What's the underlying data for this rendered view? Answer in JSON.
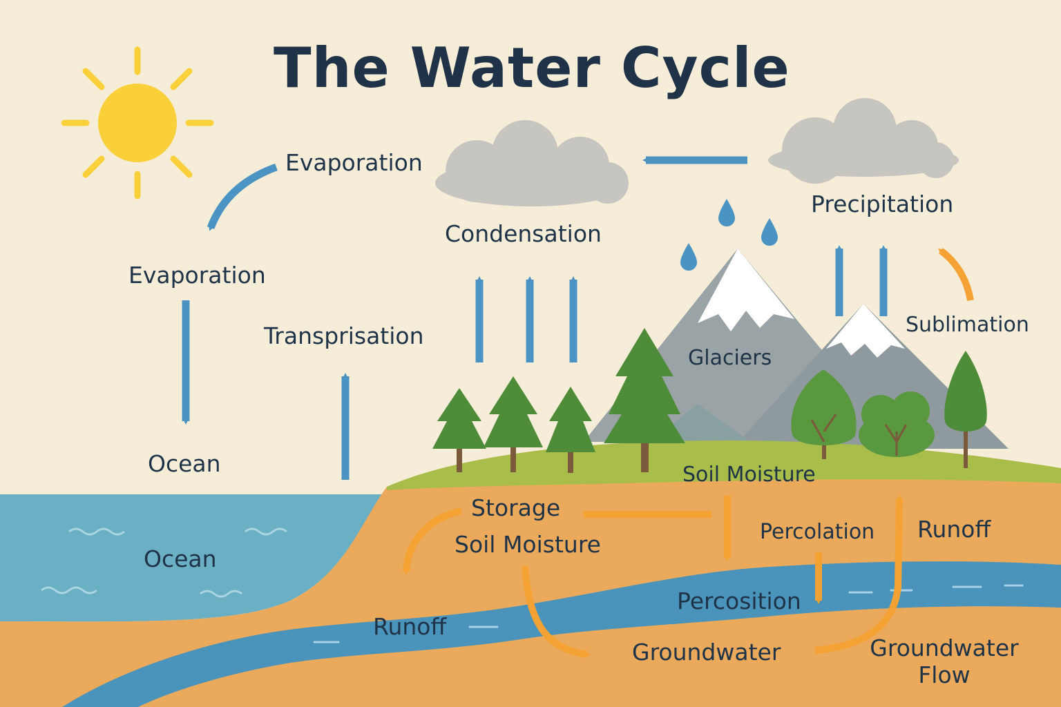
{
  "title": "The Water Cycle",
  "labels": {
    "evaporation_top": "Evaporation",
    "evaporation_mid": "Evaporation",
    "ocean_air": "Ocean",
    "ocean_water": "Ocean",
    "transpiration": "Transprisation",
    "condensation": "Condensation",
    "precipitation": "Precipitation",
    "sublimation": "Sublimation",
    "glaciers": "Glaciers",
    "soil_moisture_surface": "Soil Moisture",
    "storage": "Storage",
    "soil_moisture_ground": "Soil Moisture",
    "percolation": "Percolation",
    "runoff_right": "Runoff",
    "percosition": "Percosition",
    "runoff_river": "Runoff",
    "groundwater": "Groundwater",
    "groundwater_flow_line1": "Groundwater",
    "groundwater_flow_line2": "Flow"
  },
  "colors": {
    "background": "#f6edd9",
    "ocean": "#6aafc4",
    "river": "#4a93bb",
    "soil": "#eba95c",
    "grass": "#a9bd4a",
    "blue_arrow": "#4a93c2",
    "orange_arrow": "#f4a233",
    "sun": "#f9cf3a",
    "cloud": "#c7c5bf",
    "mountain": "#9aa3a6",
    "snow": "#ffffff",
    "tree": "#4f8c3a",
    "trunk": "#7a5a3a",
    "text": "#1e3347"
  },
  "icons": [
    "sun-icon",
    "cloud-icon",
    "raindrop-icon",
    "mountain-icon",
    "tree-icon",
    "bush-icon"
  ]
}
